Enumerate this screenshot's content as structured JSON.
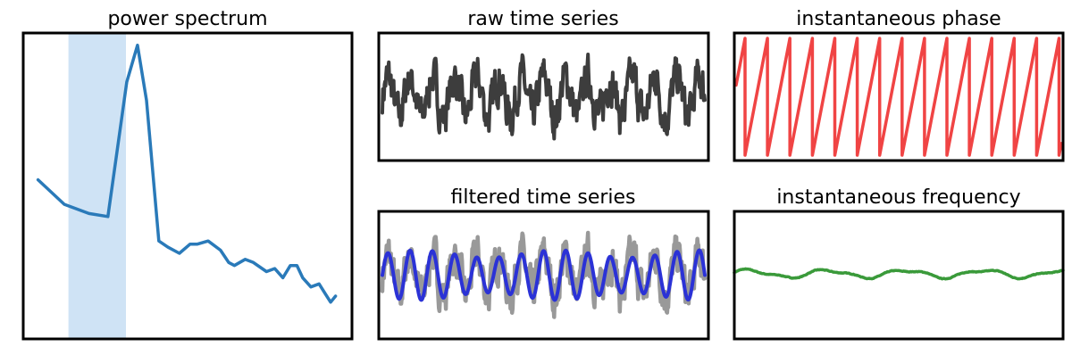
{
  "chart_data": [
    {
      "type": "line",
      "title": "power spectrum",
      "xlabel": "",
      "ylabel": "",
      "grid": false,
      "xlim": [
        0,
        40
      ],
      "ylim": [
        0,
        1
      ],
      "highlight_band": {
        "x": [
          5.5,
          12.5
        ],
        "color": "#cfe3f5"
      },
      "series": [
        {
          "color": "#2a7ab9",
          "x": [
            1.8,
            5,
            8,
            10.3,
            10.3,
            12.6,
            13.9,
            15,
            16.5,
            17.6,
            19,
            20.3,
            21.2,
            22.5,
            24,
            25,
            25.7,
            27,
            28,
            29.6,
            30.6,
            31.6,
            32.5,
            33.3,
            34,
            35,
            36,
            36.7,
            37.4,
            38
          ],
          "y": [
            0.52,
            0.44,
            0.41,
            0.4,
            0.4,
            0.84,
            0.96,
            0.78,
            0.32,
            0.3,
            0.28,
            0.31,
            0.31,
            0.32,
            0.29,
            0.25,
            0.24,
            0.26,
            0.25,
            0.22,
            0.23,
            0.2,
            0.24,
            0.24,
            0.2,
            0.17,
            0.18,
            0.15,
            0.12,
            0.14
          ]
        }
      ]
    },
    {
      "type": "line",
      "title": "raw time series",
      "xlabel": "",
      "ylabel": "",
      "grid": false,
      "series": [
        {
          "color": "#3d3d3d",
          "signal": "raw"
        }
      ]
    },
    {
      "type": "line",
      "title": "instantaneous phase",
      "xlabel": "",
      "ylabel": "",
      "grid": false,
      "series": [
        {
          "color": "#f04444",
          "signal": "phase",
          "cycles": 14.5
        }
      ]
    },
    {
      "type": "line",
      "title": "filtered time series",
      "xlabel": "",
      "ylabel": "",
      "grid": false,
      "series": [
        {
          "color": "#999999",
          "signal": "raw"
        },
        {
          "color": "#2b32d6",
          "signal": "filtered",
          "cycles": 14.5
        }
      ]
    },
    {
      "type": "line",
      "title": "instantaneous frequency",
      "xlabel": "",
      "ylabel": "",
      "grid": false,
      "series": [
        {
          "color": "#3a9a3a",
          "signal": "frequency"
        }
      ]
    }
  ]
}
